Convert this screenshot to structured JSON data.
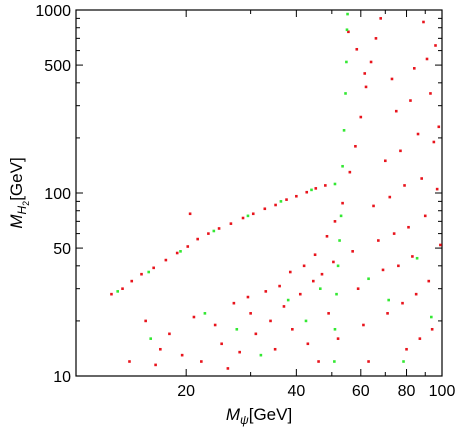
{
  "chart_data": {
    "type": "scatter",
    "title": "",
    "xlabel": "M_ψ[GeV]",
    "ylabel": "M_H2[GeV]",
    "xlabel_parts": {
      "main": "M",
      "sub": "ψ",
      "unit": "[GeV]"
    },
    "ylabel_parts": {
      "main": "M",
      "sub": "H",
      "subsub": "2",
      "unit": "[GeV]"
    },
    "xscale": "log",
    "yscale": "log",
    "xlim": [
      10,
      100
    ],
    "ylim": [
      10,
      1000
    ],
    "x_ticks": [
      20,
      40,
      60,
      80,
      100
    ],
    "x_tick_labels": [
      "20",
      "40",
      "60",
      "80",
      "100"
    ],
    "y_ticks": [
      10,
      50,
      100,
      500,
      1000
    ],
    "y_tick_labels": [
      "10",
      "50",
      "100",
      "500",
      "1000"
    ],
    "grid": false,
    "legend": "none",
    "series": [
      {
        "color": "#e8141c",
        "values": [
          [
            12.5,
            28
          ],
          [
            13.4,
            30
          ],
          [
            14.2,
            33
          ],
          [
            15.1,
            36
          ],
          [
            16.3,
            39
          ],
          [
            17.6,
            43
          ],
          [
            18.9,
            47
          ],
          [
            20.2,
            51
          ],
          [
            21.5,
            56
          ],
          [
            23.0,
            60
          ],
          [
            24.6,
            64
          ],
          [
            26.5,
            68
          ],
          [
            28.6,
            73
          ],
          [
            30.5,
            77
          ],
          [
            32.8,
            82
          ],
          [
            35.1,
            86
          ],
          [
            37.6,
            92
          ],
          [
            40.0,
            96
          ],
          [
            42.7,
            101
          ],
          [
            45.2,
            106
          ],
          [
            48.0,
            110
          ],
          [
            20.5,
            77
          ],
          [
            14.0,
            12
          ],
          [
            16.5,
            11.5
          ],
          [
            19.5,
            13
          ],
          [
            22.0,
            12
          ],
          [
            25.0,
            15
          ],
          [
            28.0,
            13.5
          ],
          [
            31.0,
            17
          ],
          [
            34.0,
            20
          ],
          [
            37.0,
            24
          ],
          [
            41.0,
            28
          ],
          [
            44.5,
            33
          ],
          [
            47.0,
            36
          ],
          [
            50.5,
            42
          ],
          [
            18.0,
            17
          ],
          [
            21.0,
            21
          ],
          [
            24.0,
            19
          ],
          [
            27.0,
            25
          ],
          [
            30.0,
            22
          ],
          [
            33.0,
            29
          ],
          [
            36.0,
            31
          ],
          [
            39.0,
            18
          ],
          [
            43.0,
            15
          ],
          [
            46.0,
            12
          ],
          [
            49.0,
            22
          ],
          [
            52.0,
            16
          ],
          [
            17.0,
            14
          ],
          [
            15.5,
            20
          ],
          [
            26.0,
            11
          ],
          [
            29.5,
            27
          ],
          [
            35.0,
            14
          ],
          [
            38.5,
            37
          ],
          [
            42.0,
            40
          ],
          [
            45.0,
            46
          ],
          [
            48.5,
            58
          ],
          [
            51.0,
            70
          ],
          [
            53.5,
            88
          ],
          [
            56.0,
            130
          ],
          [
            58.0,
            180
          ],
          [
            60.0,
            260
          ],
          [
            62.0,
            380
          ],
          [
            64.0,
            520
          ],
          [
            66.0,
            700
          ],
          [
            68.0,
            900
          ],
          [
            70.0,
            150
          ],
          [
            72.0,
            95
          ],
          [
            74.0,
            60
          ],
          [
            76.0,
            40
          ],
          [
            78.0,
            25
          ],
          [
            80.0,
            14
          ],
          [
            82.0,
            320
          ],
          [
            84.0,
            480
          ],
          [
            86.0,
            210
          ],
          [
            88.0,
            120
          ],
          [
            90.0,
            75
          ],
          [
            92.0,
            33
          ],
          [
            94.0,
            18
          ],
          [
            96.0,
            640
          ],
          [
            98.0,
            230
          ],
          [
            57.0,
            48
          ],
          [
            59.0,
            30
          ],
          [
            61.0,
            19
          ],
          [
            63.0,
            12
          ],
          [
            65.0,
            85
          ],
          [
            67.0,
            55
          ],
          [
            69.0,
            38
          ],
          [
            71.0,
            22
          ],
          [
            73.0,
            420
          ],
          [
            75.0,
            280
          ],
          [
            77.0,
            170
          ],
          [
            79.0,
            110
          ],
          [
            81.0,
            65
          ],
          [
            83.0,
            45
          ],
          [
            85.0,
            28
          ],
          [
            87.0,
            16
          ],
          [
            89.0,
            860
          ],
          [
            91.0,
            540
          ],
          [
            93.0,
            350
          ],
          [
            95.0,
            190
          ],
          [
            97.0,
            105
          ],
          [
            99.0,
            52
          ],
          [
            55.5,
            760
          ],
          [
            58.5,
            610
          ],
          [
            61.5,
            450
          ]
        ]
      },
      {
        "color": "#33e833",
        "values": [
          [
            13.0,
            29
          ],
          [
            15.8,
            37
          ],
          [
            19.3,
            48
          ],
          [
            23.8,
            62
          ],
          [
            29.5,
            75
          ],
          [
            36.3,
            90
          ],
          [
            44.0,
            104
          ],
          [
            51.0,
            112
          ],
          [
            53.5,
            140
          ],
          [
            54.0,
            220
          ],
          [
            54.5,
            350
          ],
          [
            54.8,
            520
          ],
          [
            55.0,
            780
          ],
          [
            55.2,
            950
          ],
          [
            53.0,
            75
          ],
          [
            52.5,
            55
          ],
          [
            52.0,
            40
          ],
          [
            51.5,
            28
          ],
          [
            51.0,
            18
          ],
          [
            50.8,
            12
          ],
          [
            16.0,
            16
          ],
          [
            22.5,
            22
          ],
          [
            27.5,
            18
          ],
          [
            32.0,
            13
          ],
          [
            38.0,
            26
          ],
          [
            42.5,
            20
          ],
          [
            46.5,
            30
          ],
          [
            63.0,
            34
          ],
          [
            71.5,
            26
          ],
          [
            78.5,
            12
          ],
          [
            85.5,
            44
          ],
          [
            93.5,
            21
          ]
        ]
      }
    ]
  }
}
